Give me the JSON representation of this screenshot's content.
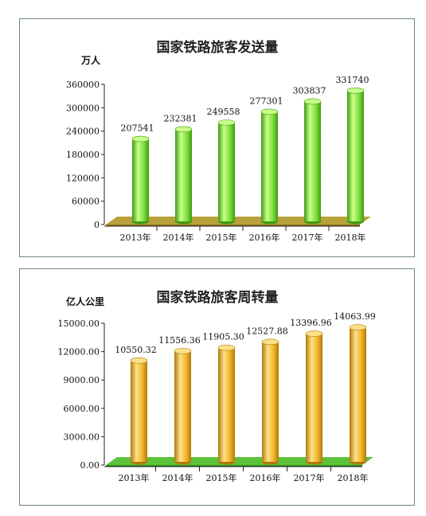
{
  "chart_data": [
    {
      "type": "bar",
      "title": "国家铁路旅客发送量",
      "ylabel": "万人",
      "xlabel": "",
      "categories": [
        "2013年",
        "2014年",
        "2015年",
        "2016年",
        "2017年",
        "2018年"
      ],
      "values": [
        207541,
        232381,
        249558,
        277301,
        303837,
        331740
      ],
      "value_labels": [
        "207541",
        "232381",
        "249558",
        "277301",
        "303837",
        "331740"
      ],
      "yticks": [
        "0",
        "60000",
        "120000",
        "180000",
        "240000",
        "300000",
        "360000"
      ],
      "ylim": [
        0,
        360000
      ],
      "grid": false,
      "legend": "none",
      "colors": {
        "bar": "#7ee03c",
        "bar_dark": "#3f9a12",
        "bar_light": "#c8ff8a",
        "floor": "#b8a03a",
        "floor_front": "#8a7420"
      }
    },
    {
      "type": "bar",
      "title": "国家铁路旅客周转量",
      "ylabel": "亿人公里",
      "xlabel": "",
      "categories": [
        "2013年",
        "2014年",
        "2015年",
        "2016年",
        "2017年",
        "2018年"
      ],
      "values": [
        10550.32,
        11556.36,
        11905.3,
        12527.88,
        13396.96,
        14063.99
      ],
      "value_labels": [
        "10550.32",
        "11556.36",
        "11905.30",
        "12527.88",
        "13396.96",
        "14063.99"
      ],
      "yticks": [
        "0.00",
        "3000.00",
        "6000.00",
        "9000.00",
        "12000.00",
        "15000.00"
      ],
      "ylim": [
        0,
        15000
      ],
      "grid": false,
      "legend": "none",
      "colors": {
        "bar": "#f2b62a",
        "bar_dark": "#b07a08",
        "bar_light": "#ffe08a",
        "floor": "#5cc23a",
        "floor_front": "#3a8e22"
      }
    }
  ]
}
